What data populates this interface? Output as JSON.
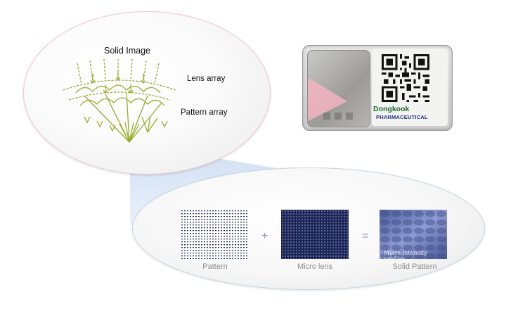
{
  "diagram": {
    "solid_image_label": "Solid Image",
    "lens_array_label": "Lens array",
    "pattern_array_label": "Pattern array"
  },
  "product_label": {
    "brand": "Dongkook",
    "brand_sub": "PHARMACEUTICAL"
  },
  "formula": {
    "plus": "+",
    "equals": "=",
    "pattern_caption": "Pattern",
    "micro_lens_caption": "Micro lens",
    "solid_pattern_caption": "Solid Pattern",
    "moire_caption": "Moire intensity profiles"
  },
  "colors": {
    "line_olive": "#9aac2e",
    "pattern_blue": "#1d2a66",
    "connector_blue": "#c8d8ee"
  }
}
